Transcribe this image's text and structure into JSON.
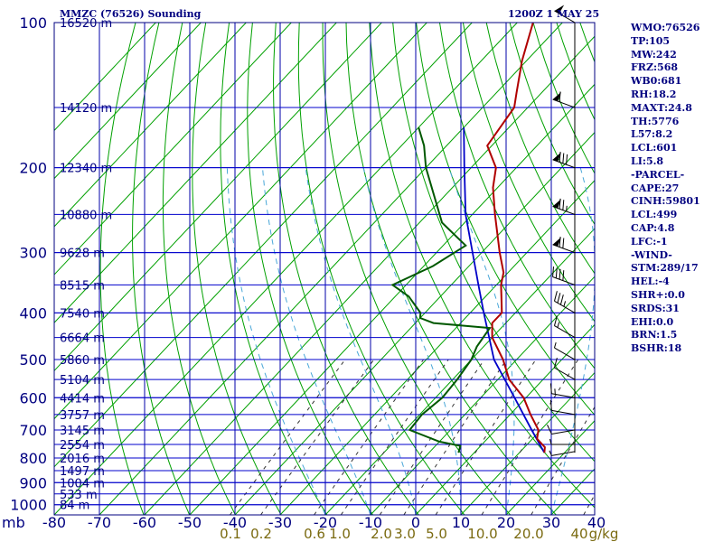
{
  "header": {
    "station": "MMZC (76526) Sounding",
    "valid": "1200Z  1 MAY 25"
  },
  "chart_data": {
    "type": "skew-t log-p sounding",
    "pressure_axis_label": "mb",
    "pressure_ticks": [
      100,
      200,
      300,
      400,
      500,
      600,
      700,
      800,
      900,
      1000
    ],
    "height_ticks": [
      {
        "p": 100,
        "label": "16520 m"
      },
      {
        "p": 150,
        "label": "14120 m"
      },
      {
        "p": 200,
        "label": "12340 m"
      },
      {
        "p": 250,
        "label": "10880 m"
      },
      {
        "p": 300,
        "label": "9628 m"
      },
      {
        "p": 350,
        "label": "8515 m"
      },
      {
        "p": 400,
        "label": "7540 m"
      },
      {
        "p": 450,
        "label": "6664 m"
      },
      {
        "p": 500,
        "label": "5860 m"
      },
      {
        "p": 550,
        "label": "5104 m"
      },
      {
        "p": 600,
        "label": "4414 m"
      },
      {
        "p": 650,
        "label": "3757 m"
      },
      {
        "p": 700,
        "label": "3145 m"
      },
      {
        "p": 750,
        "label": "2554 m"
      },
      {
        "p": 800,
        "label": "2016 m"
      },
      {
        "p": 850,
        "label": "1497 m"
      },
      {
        "p": 900,
        "label": "1004 m"
      },
      {
        "p": 950,
        "label": "533 m"
      },
      {
        "p": 1000,
        "label": "84 m"
      }
    ],
    "temperature_ticks": [
      -80,
      -70,
      -60,
      -50,
      -40,
      -30,
      -20,
      -10,
      0,
      10,
      20,
      30,
      40
    ],
    "temperature_tick_labels": [
      "-80",
      "-70",
      "-60",
      "-50",
      "-40",
      "-30",
      "-20",
      "-10",
      "0",
      "10",
      "20",
      "30",
      "40"
    ],
    "mixing_ratio_labels": [
      {
        "label": "0.1",
        "value": 0.1
      },
      {
        "label": "0.2",
        "value": 0.2
      },
      {
        "label": "0.6",
        "value": 0.6
      },
      {
        "label": "1.0",
        "value": 1.0
      },
      {
        "label": "2.0",
        "value": 2.0
      },
      {
        "label": "3.0",
        "value": 3.0
      },
      {
        "label": "5.0",
        "value": 5.0
      },
      {
        "label": "10.0",
        "value": 10.0
      },
      {
        "label": "20.0",
        "value": 20.0
      },
      {
        "label": "40",
        "value": 40
      },
      {
        "label": "g/kg",
        "value": null
      }
    ],
    "temperature_profile": [
      {
        "p": 780,
        "t": 15.5
      },
      {
        "p": 760,
        "t": 14.5
      },
      {
        "p": 730,
        "t": 11.0
      },
      {
        "p": 700,
        "t": 9.5
      },
      {
        "p": 650,
        "t": 4.5
      },
      {
        "p": 600,
        "t": -0.5
      },
      {
        "p": 550,
        "t": -7.5
      },
      {
        "p": 500,
        "t": -13.0
      },
      {
        "p": 450,
        "t": -20.0
      },
      {
        "p": 420,
        "t": -23.0
      },
      {
        "p": 400,
        "t": -23.0
      },
      {
        "p": 370,
        "t": -26.5
      },
      {
        "p": 350,
        "t": -29.0
      },
      {
        "p": 330,
        "t": -31.0
      },
      {
        "p": 300,
        "t": -36.0
      },
      {
        "p": 250,
        "t": -45.0
      },
      {
        "p": 220,
        "t": -51.0
      },
      {
        "p": 200,
        "t": -54.5
      },
      {
        "p": 180,
        "t": -61.0
      },
      {
        "p": 150,
        "t": -63.0
      },
      {
        "p": 140,
        "t": -65.5
      },
      {
        "p": 120,
        "t": -71.0
      },
      {
        "p": 100,
        "t": -76.5
      }
    ],
    "dewpoint_profile": [
      {
        "p": 780,
        "t": -3.5
      },
      {
        "p": 755,
        "t": -4.5
      },
      {
        "p": 740,
        "t": -10.0
      },
      {
        "p": 700,
        "t": -19.0
      },
      {
        "p": 650,
        "t": -19.5
      },
      {
        "p": 600,
        "t": -18.5
      },
      {
        "p": 550,
        "t": -19.0
      },
      {
        "p": 500,
        "t": -20.0
      },
      {
        "p": 470,
        "t": -21.5
      },
      {
        "p": 430,
        "t": -22.5
      },
      {
        "p": 420,
        "t": -36.0
      },
      {
        "p": 410,
        "t": -40.0
      },
      {
        "p": 400,
        "t": -41.0
      },
      {
        "p": 370,
        "t": -47.0
      },
      {
        "p": 350,
        "t": -53.0
      },
      {
        "p": 320,
        "t": -48.0
      },
      {
        "p": 290,
        "t": -45.0
      },
      {
        "p": 260,
        "t": -55.0
      },
      {
        "p": 200,
        "t": -70.0
      },
      {
        "p": 180,
        "t": -75.0
      },
      {
        "p": 165,
        "t": -80.0
      }
    ],
    "parcel_profile": [
      {
        "p": 780,
        "t": 15.5
      },
      {
        "p": 700,
        "t": 8.0
      },
      {
        "p": 600,
        "t": -2.5
      },
      {
        "p": 500,
        "t": -15.0
      },
      {
        "p": 400,
        "t": -27.0
      },
      {
        "p": 350,
        "t": -34.0
      },
      {
        "p": 300,
        "t": -42.0
      },
      {
        "p": 250,
        "t": -51.5
      },
      {
        "p": 200,
        "t": -61.5
      },
      {
        "p": 165,
        "t": -70.0
      }
    ],
    "winds": [
      {
        "p": 776,
        "dir": 260,
        "spd": 5
      },
      {
        "p": 750,
        "dir": 270,
        "spd": 5
      },
      {
        "p": 700,
        "dir": 260,
        "spd": 10
      },
      {
        "p": 650,
        "dir": 280,
        "spd": 10
      },
      {
        "p": 600,
        "dir": 280,
        "spd": 15
      },
      {
        "p": 550,
        "dir": 300,
        "spd": 10
      },
      {
        "p": 500,
        "dir": 300,
        "spd": 5
      },
      {
        "p": 450,
        "dir": 300,
        "spd": 15
      },
      {
        "p": 400,
        "dir": 300,
        "spd": 35
      },
      {
        "p": 350,
        "dir": 290,
        "spd": 40
      },
      {
        "p": 300,
        "dir": 290,
        "spd": 70
      },
      {
        "p": 250,
        "dir": 290,
        "spd": 75
      },
      {
        "p": 200,
        "dir": 290,
        "spd": 80
      },
      {
        "p": 150,
        "dir": 290,
        "spd": 60
      },
      {
        "p": 100,
        "dir": 300,
        "spd": 50
      }
    ]
  },
  "indices": [
    "WMO:76526",
    "TP:105",
    "MW:242",
    "FRZ:568",
    "WB0:681",
    "RH:18.2",
    "MAXT:24.8",
    "TH:5776",
    "L57:8.2",
    "LCL:601",
    "LI:5.8",
    "-PARCEL-",
    "CAPE:27",
    "CINH:59801",
    "LCL:499",
    "CAP:4.8",
    "LFC:-1",
    "-WIND-",
    "STM:289/17",
    "HEL:-4",
    "SHR+:0.0",
    "SRDS:31",
    "EHI:0.0",
    "BRN:1.5",
    "BSHR:18"
  ],
  "colors": {
    "frame": "#000080",
    "isobar": "#0000cc",
    "isotherm": "#0000aa",
    "dry_adiabat": "#00a000",
    "moist_adiabat": "#49a7d8",
    "mixing_ratio": "#333333",
    "temperature": "#b00000",
    "dewpoint": "#005800",
    "parcel": "#0000c8",
    "pressure_label": "#000080",
    "height_label": "#000080",
    "mixing_label": "#7a6a10"
  }
}
